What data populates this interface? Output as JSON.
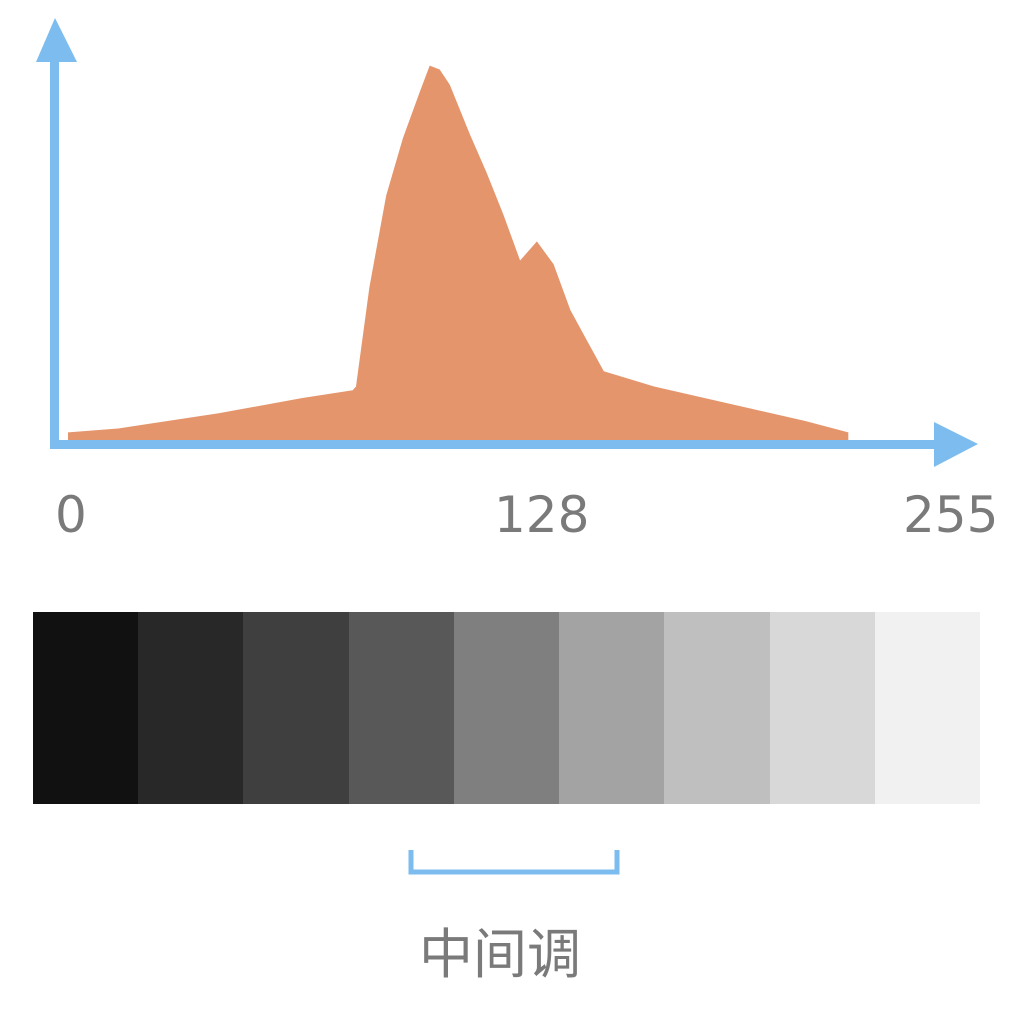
{
  "colors": {
    "axis": "#7dbcef",
    "area": "#e5956c",
    "text": "#7a7a7a"
  },
  "chart_data": {
    "type": "area",
    "title": "",
    "xlabel": "",
    "ylabel": "",
    "xlim": [
      0,
      255
    ],
    "ylim": [
      0,
      100
    ],
    "x_ticks": [
      "0",
      "128",
      "255"
    ],
    "grid": false,
    "legend": "none",
    "series": [
      {
        "x": [
          0,
          15,
          45,
          70,
          85,
          86,
          90,
          95,
          100,
          105,
          108,
          111,
          114,
          120,
          125,
          130,
          135,
          140,
          145,
          150,
          155,
          160,
          175,
          200,
          220,
          233
        ],
        "y": [
          2,
          3,
          7,
          11,
          13,
          14,
          40,
          64,
          79,
          91,
          98,
          97,
          93,
          80,
          70,
          59,
          47,
          52,
          46,
          34,
          26,
          18,
          14,
          9,
          5,
          2
        ]
      }
    ]
  },
  "grayscale": {
    "swatches": [
      "#111111",
      "#282828",
      "#3f3f3f",
      "#585858",
      "#7f7f7f",
      "#a3a3a3",
      "#bfbfbf",
      "#d8d8d8",
      "#f1f1f1"
    ],
    "highlight_label": "中间调"
  }
}
